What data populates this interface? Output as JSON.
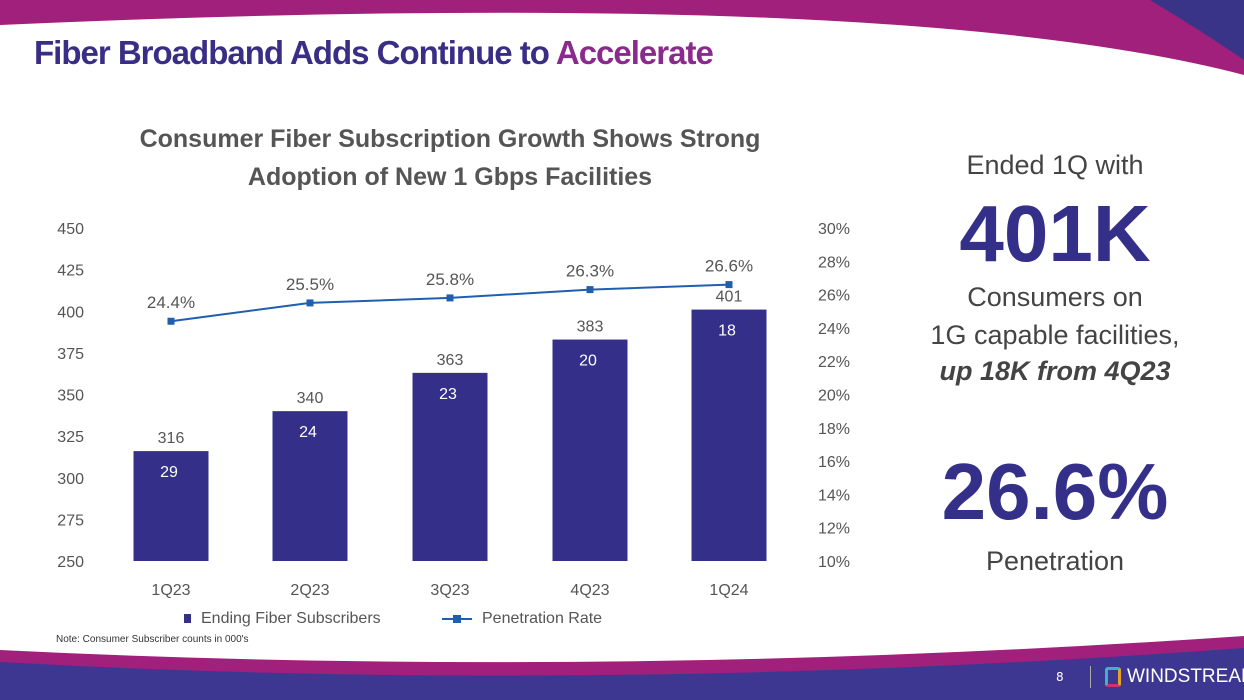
{
  "slide": {
    "title_main": "Fiber Broadband Adds Continue to",
    "title_accent": "Accelerate",
    "note": "Note: Consumer Subscriber counts in 000's",
    "page_number": "8",
    "brand": "WINDSTREAM"
  },
  "side": {
    "line1": "Ended 1Q with",
    "big1": "401K",
    "line2": "Consumers on",
    "line3": "1G capable facilities,",
    "line4": "up 18K from 4Q23",
    "big2": "26.6%",
    "line5": "Penetration"
  },
  "colors": {
    "bar": "#34308a",
    "line": "#1f5fb0",
    "accent": "#8a2a8c"
  },
  "chart_data": {
    "type": "bar+line",
    "title": "Consumer Fiber Subscription Growth Shows Strong Adoption of New 1 Gbps Facilities",
    "title_lines": [
      "Consumer Fiber Subscription Growth Shows Strong",
      "Adoption of New 1 Gbps Facilities"
    ],
    "categories": [
      "1Q23",
      "2Q23",
      "3Q23",
      "4Q23",
      "1Q24"
    ],
    "series": [
      {
        "name": "Ending Fiber Subscribers",
        "type": "bar",
        "axis": "left",
        "values": [
          316,
          340,
          363,
          383,
          401
        ],
        "inner_labels": [
          29,
          24,
          23,
          20,
          18
        ]
      },
      {
        "name": "Penetration Rate",
        "type": "line",
        "axis": "right",
        "values": [
          24.4,
          25.5,
          25.8,
          26.3,
          26.6
        ],
        "labels": [
          "24.4%",
          "25.5%",
          "25.8%",
          "26.3%",
          "26.6%"
        ]
      }
    ],
    "ylim_left": [
      250,
      450
    ],
    "yticks_left": [
      "250",
      "275",
      "300",
      "325",
      "350",
      "375",
      "400",
      "425",
      "450"
    ],
    "ylim_right": [
      10,
      30
    ],
    "yticks_right": [
      "10%",
      "12%",
      "14%",
      "16%",
      "18%",
      "20%",
      "22%",
      "24%",
      "26%",
      "28%",
      "30%"
    ],
    "grid": false,
    "legend": "bottom"
  }
}
